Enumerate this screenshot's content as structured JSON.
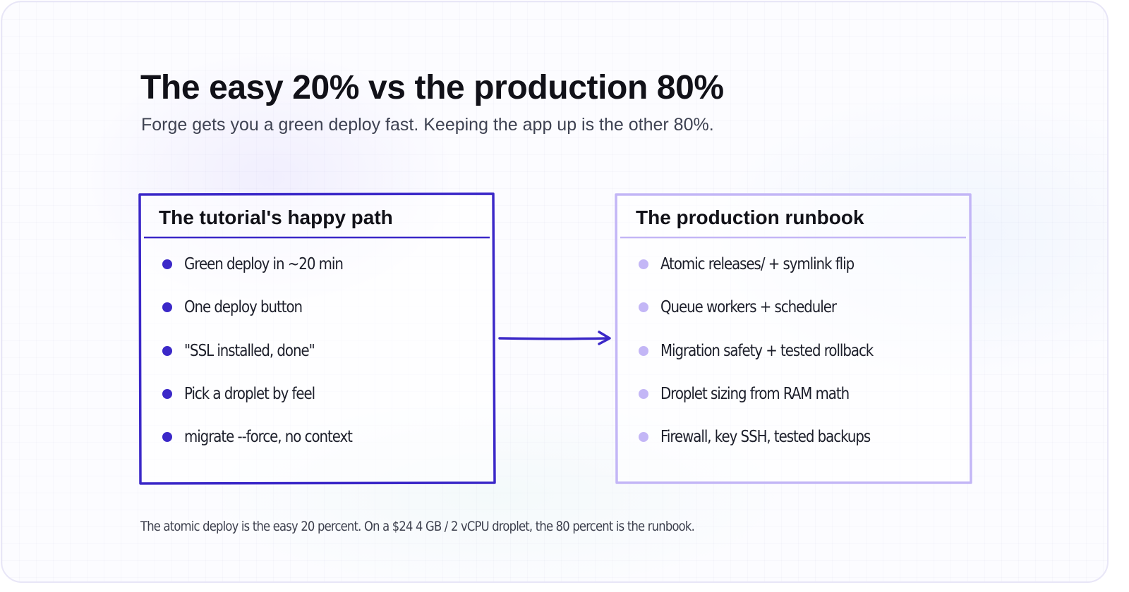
{
  "header": {
    "title": "The easy 20% vs the production 80%",
    "subtitle": "Forge gets you a green deploy fast. Keeping the app up is the other 80%."
  },
  "left_box": {
    "title": "The tutorial's happy path",
    "items": [
      "Green deploy in ~20 min",
      "One deploy button",
      "\"SSL installed, done\"",
      "Pick a droplet by feel",
      "migrate --force, no context"
    ]
  },
  "right_box": {
    "title": "The production runbook",
    "items": [
      "Atomic releases/ + symlink flip",
      "Queue workers + scheduler",
      "Migration safety + tested rollback",
      "Droplet sizing from RAM math",
      "Firewall, key SSH, tested backups"
    ]
  },
  "caption": "The atomic deploy is the easy 20 percent. On a $24 4 GB / 2 vCPU droplet, the 80 percent is the runbook.",
  "colors": {
    "left_accent": "#3b28c8",
    "right_accent": "#c3b6f6",
    "text": "#111118"
  }
}
